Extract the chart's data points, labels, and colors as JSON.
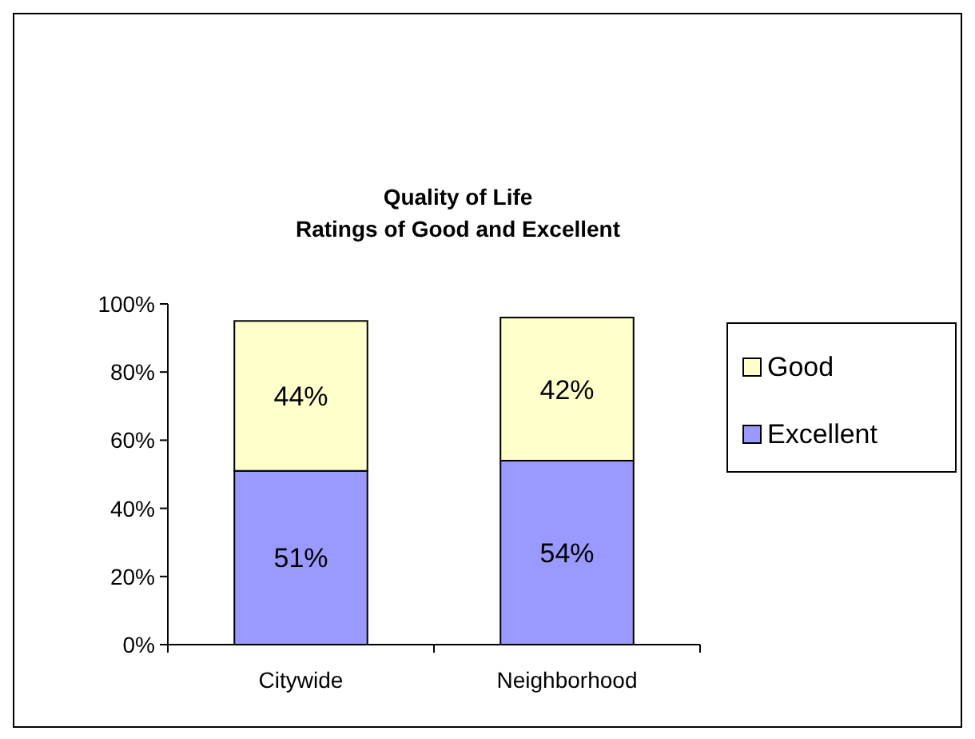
{
  "chart_data": {
    "type": "bar",
    "title": "Quality of Life\nRatings of Good and Excellent",
    "categories": [
      "Citywide",
      "Neighborhood"
    ],
    "stacked": true,
    "series": [
      {
        "name": "Excellent",
        "color": "#9999ff",
        "values": [
          51,
          54
        ],
        "value_labels": [
          "51%",
          "54%"
        ]
      },
      {
        "name": "Good",
        "color": "#ffffcc",
        "values": [
          44,
          42
        ],
        "value_labels": [
          "44%",
          "42%"
        ]
      }
    ],
    "ylim": [
      0,
      100
    ],
    "yticks": [
      {
        "value": 0,
        "label": "0%"
      },
      {
        "value": 20,
        "label": "20%"
      },
      {
        "value": 40,
        "label": "40%"
      },
      {
        "value": 60,
        "label": "60%"
      },
      {
        "value": 80,
        "label": "80%"
      },
      {
        "value": 100,
        "label": "100%"
      }
    ],
    "grid": false,
    "legend": "right"
  }
}
